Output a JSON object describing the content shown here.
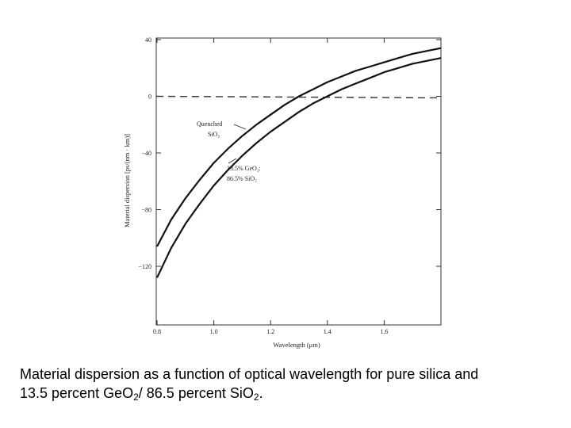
{
  "chart_data": {
    "type": "line",
    "title": "",
    "xlabel": "Wavelength (μm)",
    "ylabel": "Material dispersion [ps/(nm · km)]",
    "xlim": [
      0.8,
      1.8
    ],
    "ylim": [
      -160,
      40
    ],
    "xticks": [
      0.8,
      1.0,
      1.2,
      1.4,
      1.6
    ],
    "xtick_labels": [
      "0.8",
      "1.0",
      "1.2",
      "1.4",
      "1.6"
    ],
    "yticks": [
      40,
      0,
      -40,
      -80,
      -120
    ],
    "ytick_labels": [
      "40",
      "0",
      "−40",
      "−80",
      "−120"
    ],
    "grid": false,
    "reference_line": {
      "y": 0,
      "style": "dashed"
    },
    "series": [
      {
        "label_lines": [
          "Quenched",
          "SiO₂"
        ],
        "x": [
          0.8,
          0.85,
          0.9,
          0.95,
          1.0,
          1.05,
          1.1,
          1.15,
          1.2,
          1.25,
          1.3,
          1.35,
          1.4,
          1.45,
          1.5,
          1.55,
          1.6,
          1.65,
          1.7,
          1.75,
          1.8
        ],
        "y": [
          -106,
          -87,
          -72,
          -59,
          -47,
          -37,
          -28,
          -20,
          -13,
          -6,
          0,
          5,
          10,
          14,
          18,
          21,
          24,
          27,
          30,
          32,
          34
        ]
      },
      {
        "label_lines": [
          "13.5% GeO₂:",
          "86.5% SiO₂"
        ],
        "x": [
          0.8,
          0.85,
          0.9,
          0.95,
          1.0,
          1.05,
          1.1,
          1.15,
          1.2,
          1.25,
          1.3,
          1.35,
          1.4,
          1.45,
          1.5,
          1.55,
          1.6,
          1.65,
          1.7,
          1.75,
          1.8
        ],
        "y": [
          -128,
          -107,
          -90,
          -76,
          -63,
          -52,
          -42,
          -33,
          -25,
          -18,
          -11,
          -5,
          0,
          5,
          9,
          13,
          17,
          20,
          23,
          25,
          27
        ]
      }
    ]
  },
  "caption": {
    "line1": "Material dispersion as a function of optical wavelength for pure silica and",
    "line2_part1": "13.5 percent GeO",
    "sub1": "2",
    "line2_part2": "/ 86.5 percent SiO",
    "sub2": "2",
    "line2_part3": "."
  }
}
